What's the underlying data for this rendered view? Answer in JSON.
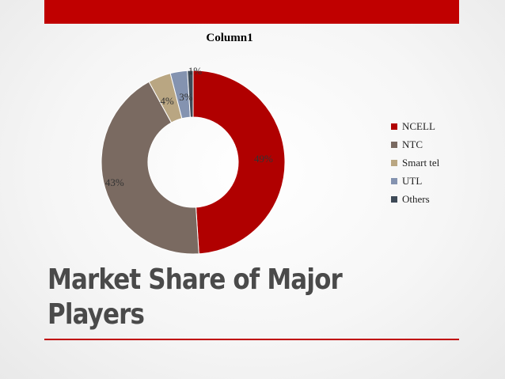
{
  "slide": {
    "title_line1": "Market Share of Major",
    "title_line2": "Players"
  },
  "colors": {
    "accent": "#c00000"
  },
  "chart_data": {
    "type": "pie",
    "subtype": "doughnut",
    "title": "Column1",
    "categories": [
      "NCELL",
      "NTC",
      "Smart tel",
      "UTL",
      "Others"
    ],
    "values": [
      49,
      43,
      4,
      3,
      1
    ],
    "labels": [
      "49%",
      "43%",
      "4%",
      "3%",
      "1%"
    ],
    "colors": [
      "#b00000",
      "#7a6a61",
      "#b9a682",
      "#8493b0",
      "#3e4a57"
    ],
    "legend_position": "right"
  }
}
